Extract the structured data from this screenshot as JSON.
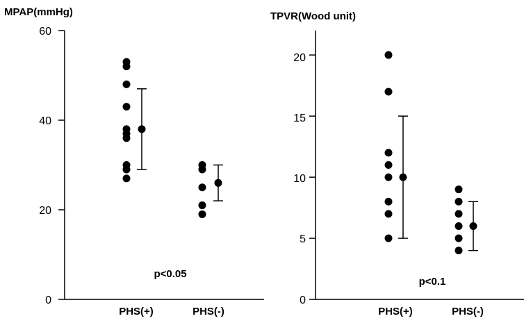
{
  "chart_data": [
    {
      "type": "scatter",
      "ylabel": "MPAP(mmHg)",
      "categories": [
        "PHS(+)",
        "PHS(-)"
      ],
      "yticks": [
        "0",
        "20",
        "40",
        "60"
      ],
      "ylim": [
        0,
        60
      ],
      "points": [
        [
          27,
          29,
          30,
          36,
          37,
          38,
          43,
          48,
          52,
          53
        ],
        [
          19,
          21,
          25,
          29,
          30
        ]
      ],
      "summary": [
        {
          "mean": 38,
          "low": 29,
          "high": 47
        },
        {
          "mean": 26,
          "low": 22,
          "high": 30
        }
      ],
      "annotation": "p<0.05",
      "annotation_at": {
        "category_index": 0.5,
        "y": 7
      }
    },
    {
      "type": "scatter",
      "ylabel": "TPVR(Wood unit)",
      "categories": [
        "PHS(+)",
        "PHS(-)"
      ],
      "yticks": [
        "0",
        "5",
        "10",
        "15",
        "20"
      ],
      "ylim": [
        0,
        22
      ],
      "points": [
        [
          5,
          7,
          8,
          10,
          11,
          12,
          17,
          20
        ],
        [
          4,
          5,
          6,
          7,
          8,
          9
        ]
      ],
      "summary": [
        {
          "mean": 10,
          "low": 5,
          "high": 15
        },
        {
          "mean": 6,
          "low": 4,
          "high": 8
        }
      ],
      "annotation": "p<0.1",
      "annotation_at": {
        "category_index": 0.5,
        "y": 1.5
      }
    }
  ],
  "colors": {
    "ink": "#000000",
    "background": "#ffffff"
  }
}
